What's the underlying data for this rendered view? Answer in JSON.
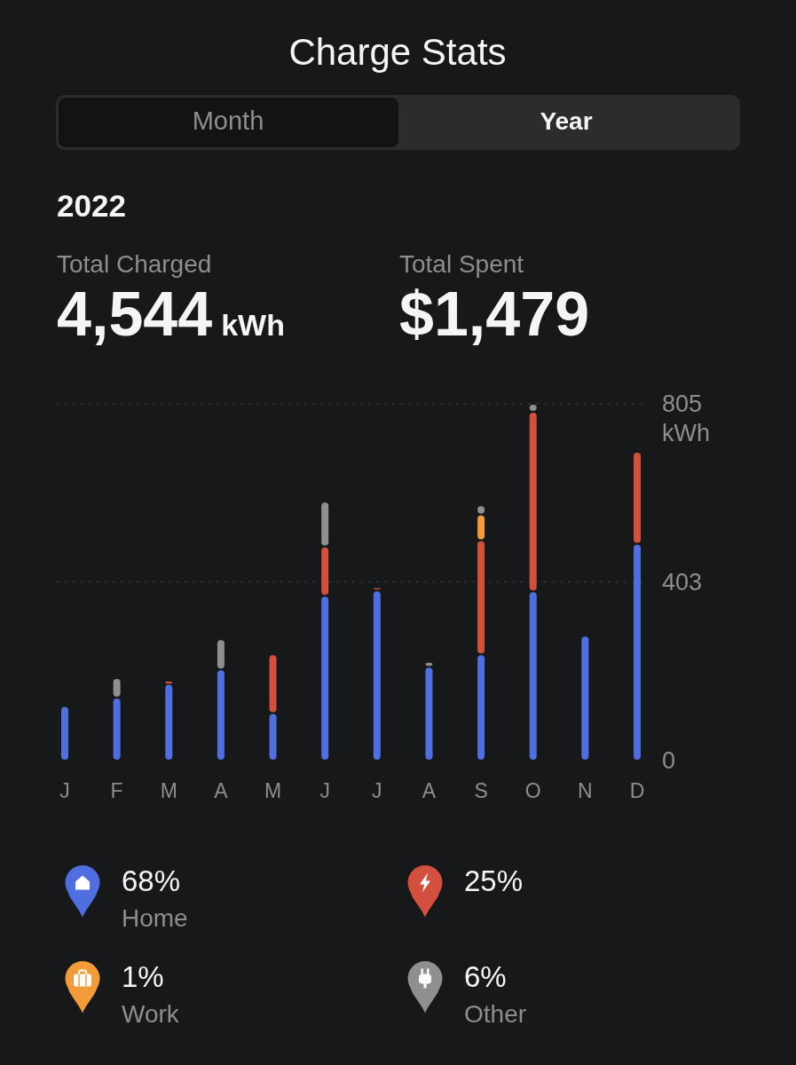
{
  "chart_data": {
    "type": "bar",
    "title": "Charge Stats",
    "subtitle": "2022",
    "categories": [
      "J",
      "F",
      "M",
      "A",
      "M",
      "J",
      "J",
      "A",
      "S",
      "O",
      "N",
      "D"
    ],
    "stacked": true,
    "series": [
      {
        "name": "Home",
        "color": "#4f6ee0",
        "values": [
          123,
          142,
          173,
          206,
          107,
          372,
          384,
          212,
          240,
          382,
          282,
          489
        ]
      },
      {
        "color": "#d4503e",
        "values": [
          null,
          null,
          6,
          null,
          133,
          111,
          7,
          null,
          257,
          405,
          null,
          208
        ]
      },
      {
        "name": "Work",
        "color": "#f29b38",
        "values": [
          null,
          null,
          null,
          null,
          null,
          null,
          null,
          null,
          58,
          null,
          null,
          null
        ]
      },
      {
        "name": "Other",
        "color": "#8f8f8f",
        "values": [
          null,
          44,
          null,
          68,
          null,
          101,
          null,
          11,
          21,
          18,
          null,
          null
        ]
      }
    ],
    "ylim": [
      0,
      805
    ],
    "yticks": [
      0,
      403,
      805
    ],
    "ylabel": "kWh",
    "grid": "y",
    "legend": "bottom",
    "annotations": [
      "Month",
      "Year",
      "Total Charged",
      "4,544",
      "kWh",
      "Total Spent",
      "$1,479",
      "68%",
      "25%",
      "1%",
      "6%"
    ]
  }
}
